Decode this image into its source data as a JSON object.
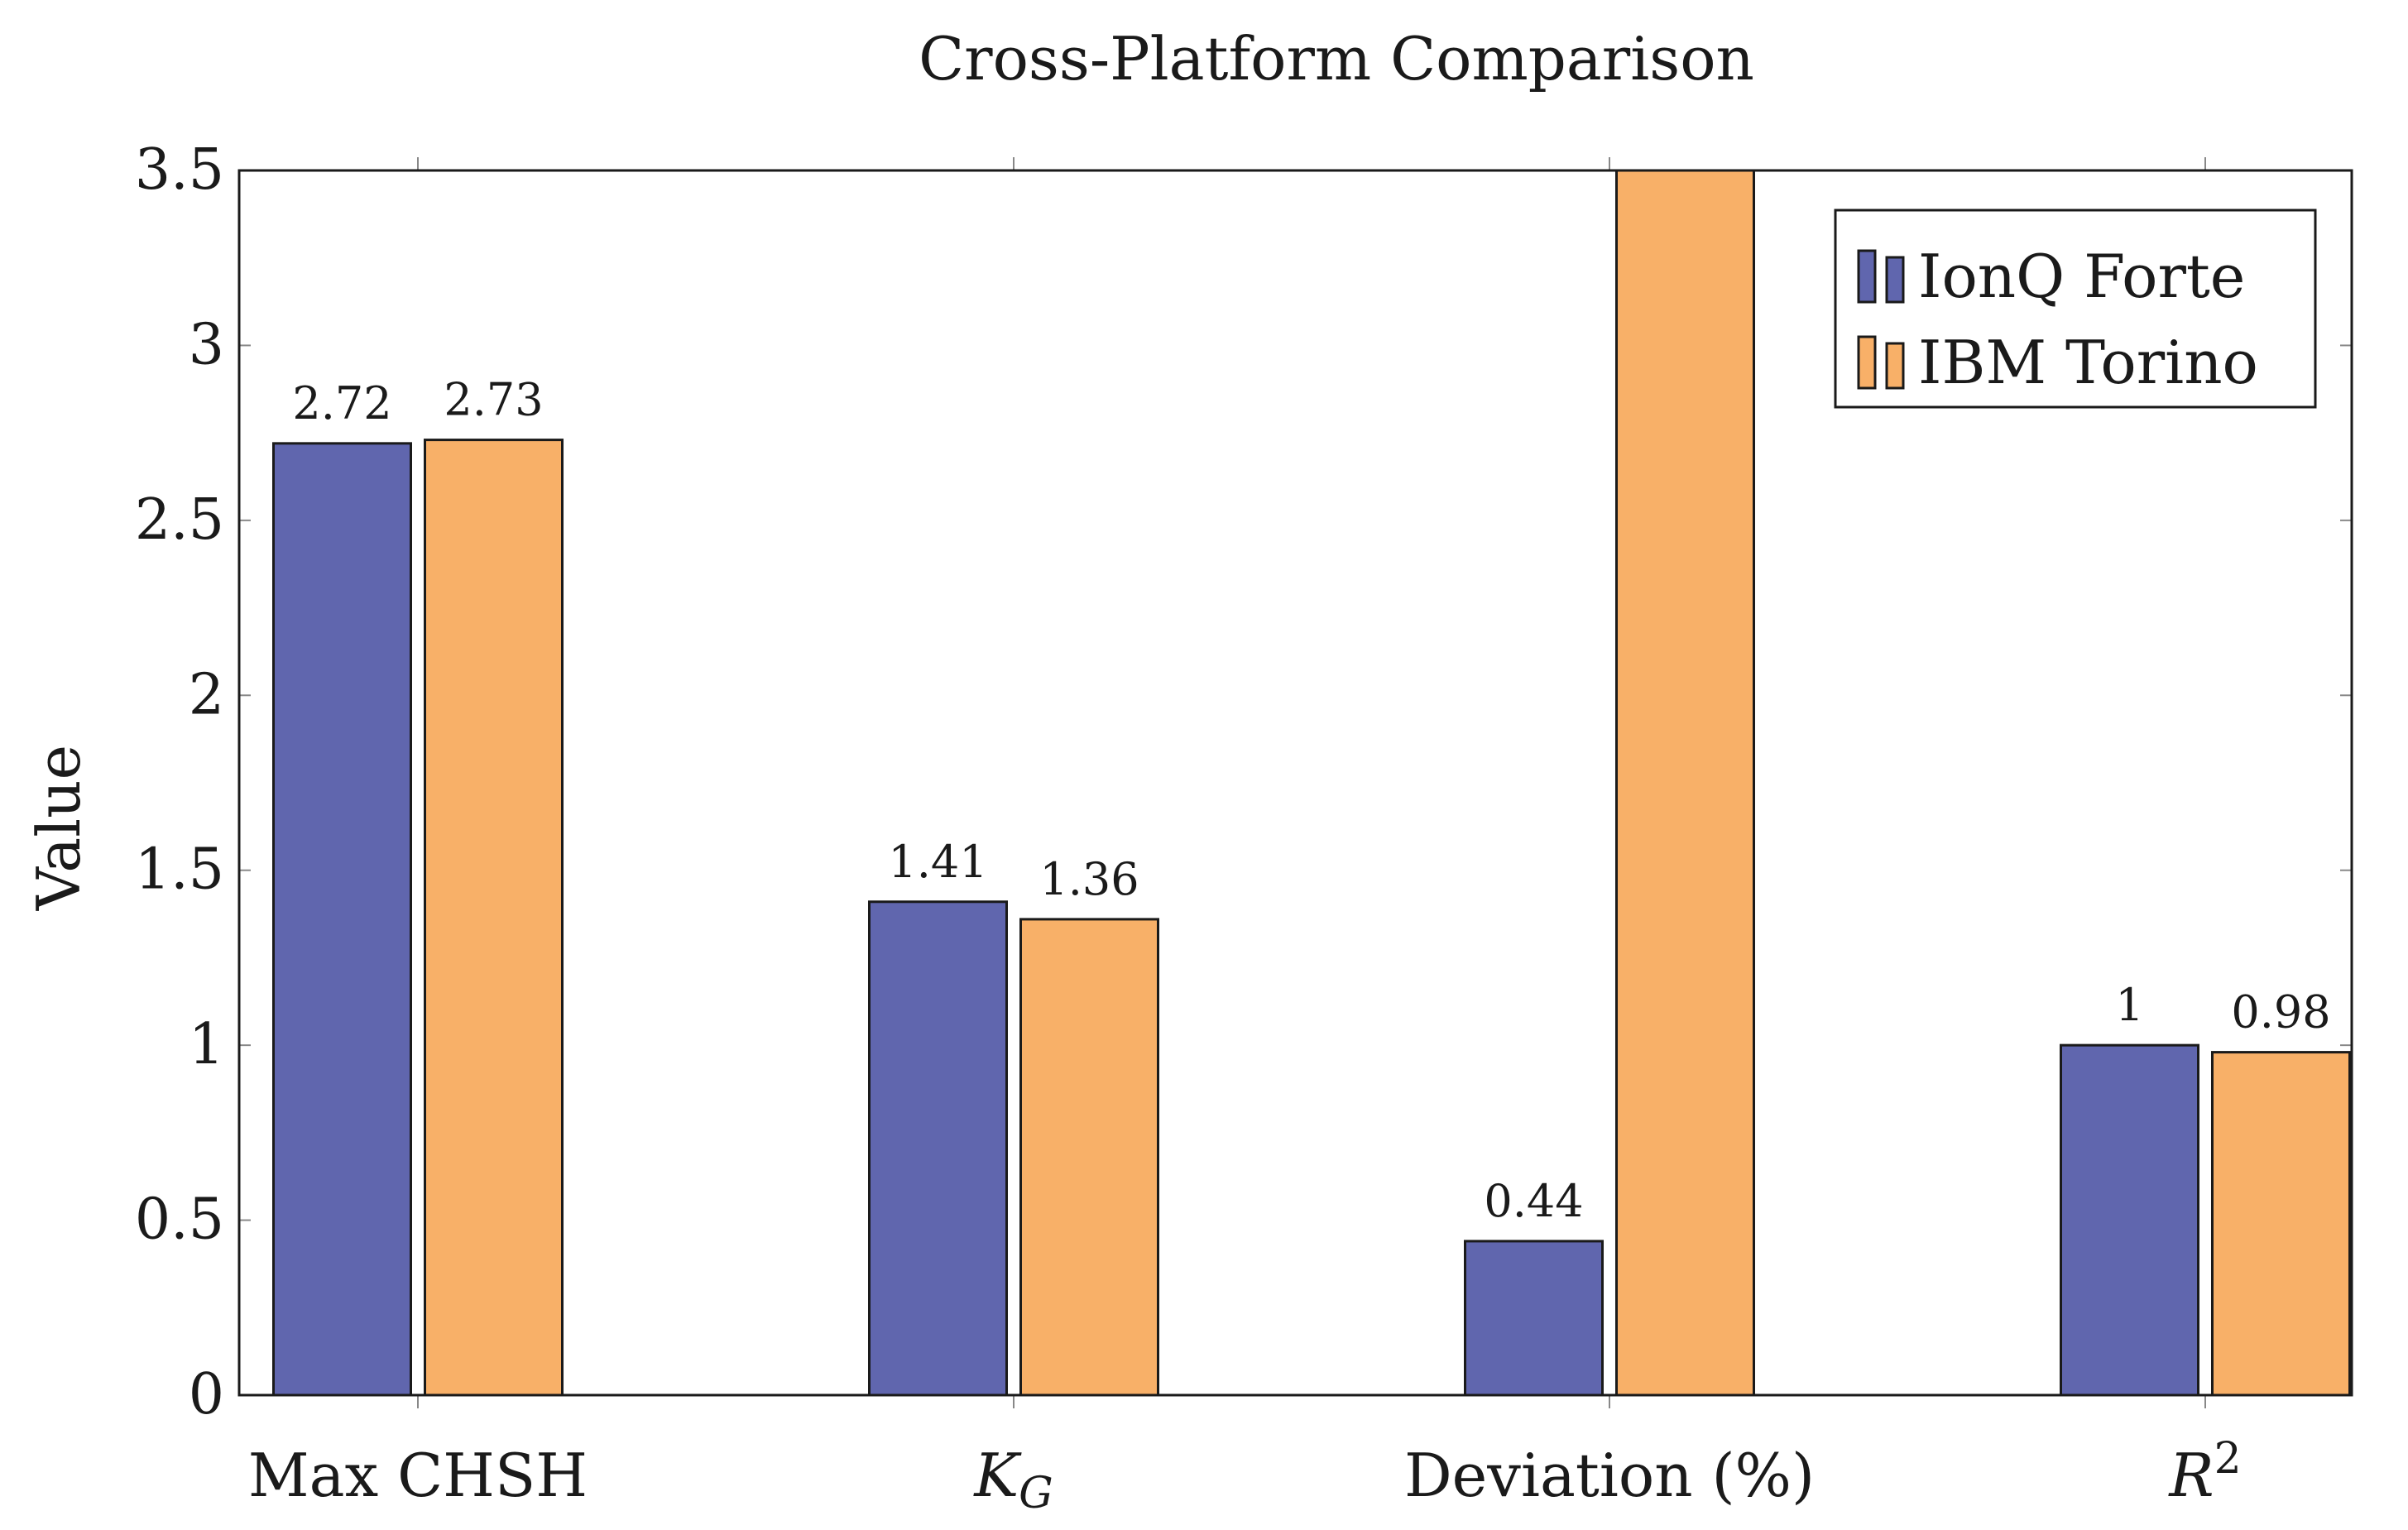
{
  "chart_data": {
    "type": "bar",
    "title": "Cross-Platform Comparison",
    "xlabel": "",
    "ylabel": "Value",
    "ylim": [
      0,
      3.5
    ],
    "yticks": [
      {
        "value": 0,
        "label": "0"
      },
      {
        "value": 0.5,
        "label": "0.5"
      },
      {
        "value": 1,
        "label": "1"
      },
      {
        "value": 1.5,
        "label": "1.5"
      },
      {
        "value": 2,
        "label": "2"
      },
      {
        "value": 2.5,
        "label": "2.5"
      },
      {
        "value": 3,
        "label": "3"
      },
      {
        "value": 3.5,
        "label": "3.5"
      }
    ],
    "categories": [
      {
        "base": "Max CHSH",
        "italic": false
      },
      {
        "base": "K",
        "sub": "G",
        "italic": true
      },
      {
        "base": "Deviation (%)",
        "italic": false
      },
      {
        "base": "R",
        "sup": "2",
        "italic": true
      }
    ],
    "series": [
      {
        "name": "IonQ Forte",
        "color": "#6066ae",
        "values": [
          2.72,
          1.41,
          0.44,
          1.0
        ],
        "labels": [
          "2.72",
          "1.41",
          "0.44",
          "1"
        ]
      },
      {
        "name": "IBM Torino",
        "color": "#f8b068",
        "values": [
          2.73,
          1.36,
          3.5,
          0.98
        ],
        "labels": [
          "2.73",
          "1.36",
          "",
          "0.98"
        ]
      }
    ],
    "legend_position": "top-right",
    "grid": false
  }
}
